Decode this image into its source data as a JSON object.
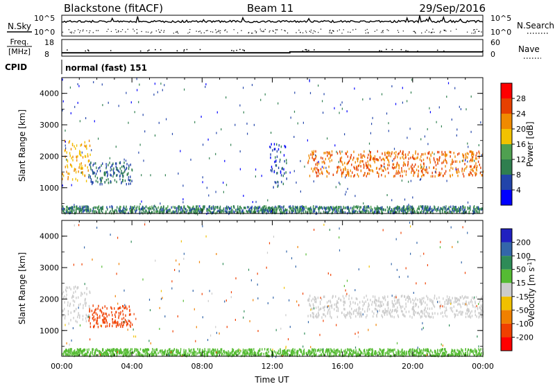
{
  "header": {
    "radar": "Blackstone (fitACF)",
    "beam": "Beam 11",
    "date": "29/Sep/2016"
  },
  "summary": {
    "left_top_label": "N.Sky",
    "right_top_label": "N.Search",
    "noise_ticks": [
      "10^5",
      "10^0"
    ],
    "freq_label_1": "Freq.",
    "freq_label_2": "[MHz]",
    "freq_ticks": [
      "18",
      "8"
    ],
    "nave_label": "Nave",
    "nave_ticks": [
      "60",
      "0"
    ],
    "cpid_label": "CPID",
    "cpid_value": "normal (fast) 151"
  },
  "panels": {
    "ylabel": "Slant Range [km]",
    "xlabel": "Time UT",
    "y_ticks": [
      "1000",
      "2000",
      "3000",
      "4000"
    ],
    "x_ticks": [
      "00:00",
      "04:00",
      "08:00",
      "12:00",
      "16:00",
      "20:00",
      "00:00"
    ]
  },
  "colorbars": {
    "power": {
      "label": "Power [dB]",
      "ticks": [
        "4",
        "8",
        "12",
        "16",
        "20",
        "24",
        "28"
      ],
      "colors": [
        "#0000ff",
        "#2244aa",
        "#2f7f4f",
        "#4fa050",
        "#f2c200",
        "#f08a00",
        "#e64000",
        "#ff0000"
      ]
    },
    "velocity": {
      "label_main": "Velocity [m s",
      "label_sup": "-1",
      "label_end": "]",
      "ticks": [
        "200",
        "100",
        "50",
        "15",
        "-15",
        "-50",
        "-100",
        "-200"
      ],
      "colors": [
        "#2020c0",
        "#3366aa",
        "#2e8b57",
        "#55bb33",
        "#cccccc",
        "#f0c000",
        "#f08000",
        "#f04000",
        "#ff0000"
      ]
    }
  },
  "chart_data": [
    {
      "type": "heatmap",
      "name": "power",
      "x_range_hours": [
        0,
        24
      ],
      "y_range_km": [
        180,
        4500
      ],
      "value_range_db": [
        0,
        32
      ],
      "features": [
        {
          "t0": 0.0,
          "t1": 1.6,
          "r0": 1200,
          "r1": 2500,
          "value": 20
        },
        {
          "t0": 1.5,
          "t1": 4.0,
          "r0": 1100,
          "r1": 1800,
          "value": 8
        },
        {
          "t0": 11.8,
          "t1": 12.8,
          "r0": 1000,
          "r1": 2400,
          "value": 6
        },
        {
          "t0": 14.0,
          "t1": 24.0,
          "r0": 1350,
          "r1": 2150,
          "value": 24
        },
        {
          "t0": 0.0,
          "t1": 24.0,
          "r0": 180,
          "r1": 400,
          "value": 10
        }
      ]
    },
    {
      "type": "heatmap",
      "name": "velocity",
      "x_range_hours": [
        0,
        24
      ],
      "y_range_km": [
        180,
        4500
      ],
      "value_range_ms": [
        -250,
        250
      ],
      "features": [
        {
          "t0": 0.0,
          "t1": 1.6,
          "r0": 1200,
          "r1": 2400,
          "value": 0
        },
        {
          "t0": 1.5,
          "t1": 4.0,
          "r0": 1100,
          "r1": 1800,
          "value": -150
        },
        {
          "t0": 14.0,
          "t1": 24.0,
          "r0": 1400,
          "r1": 2100,
          "value": 0
        },
        {
          "t0": 0.0,
          "t1": 24.0,
          "r0": 180,
          "r1": 400,
          "value": 30
        }
      ]
    },
    {
      "type": "line",
      "name": "frequency",
      "x_hours": [
        0,
        13,
        13,
        24
      ],
      "y_mhz": [
        10.0,
        10.0,
        10.6,
        10.6
      ],
      "ylim": [
        8,
        18
      ]
    }
  ]
}
